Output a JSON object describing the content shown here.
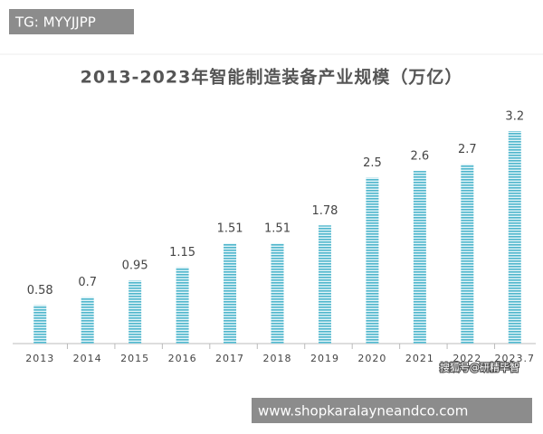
{
  "chart_data": {
    "type": "bar",
    "title": "2013-2023年智能制造装备产业规模（万亿）",
    "categories": [
      "2013",
      "2014",
      "2015",
      "2016",
      "2017",
      "2018",
      "2019",
      "2020",
      "2021",
      "2022",
      "2023.7"
    ],
    "values": [
      0.58,
      0.7,
      0.95,
      1.15,
      1.51,
      1.51,
      1.78,
      2.5,
      2.6,
      2.7,
      3.2
    ],
    "color": "#4fb6cc",
    "watermark": "搜狐号@研精毕智"
  },
  "overlay": {
    "top_tag": "TG: MYYJJPP",
    "bottom_url": "www.shopkaralayneandco.com"
  }
}
